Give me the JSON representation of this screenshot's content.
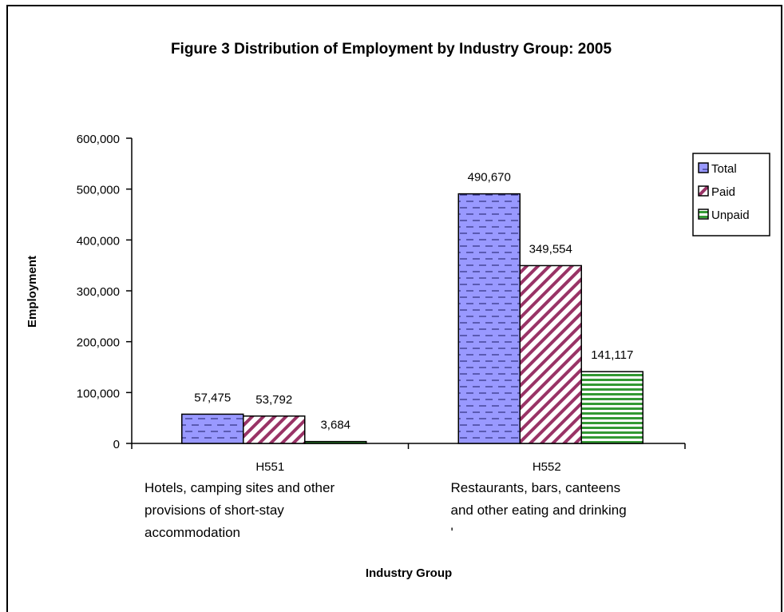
{
  "chart_data": {
    "type": "bar",
    "title": "Figure 3  Distribution of Employment by Industry Group:  2005",
    "xlabel": "Industry Group",
    "ylabel": "Employment",
    "ylim": [
      0,
      600000
    ],
    "yticks": [
      "0",
      "100,000",
      "200,000",
      "300,000",
      "400,000",
      "500,000",
      "600,000"
    ],
    "categories": [
      {
        "code": "H551",
        "description": [
          "Hotels, camping sites and other",
          "provisions of short-stay",
          "accommodation"
        ]
      },
      {
        "code": "H552",
        "description": [
          "Restaurants, bars, canteens",
          "and other eating and drinking",
          "'"
        ]
      }
    ],
    "series": [
      {
        "name": "Total",
        "values": [
          57475,
          490670
        ],
        "labels": [
          "57,475",
          "490,670"
        ],
        "color": "#9999ff",
        "pattern": "dashed-horizontal"
      },
      {
        "name": "Paid",
        "values": [
          53792,
          349554
        ],
        "labels": [
          "53,792",
          "349,554"
        ],
        "color": "#993366",
        "pattern": "diagonal"
      },
      {
        "name": "Unpaid",
        "values": [
          3684,
          141117
        ],
        "labels": [
          "3,684",
          "141,117"
        ],
        "color": "#339933",
        "pattern": "horizontal"
      }
    ],
    "grid": false,
    "legend": "right"
  }
}
